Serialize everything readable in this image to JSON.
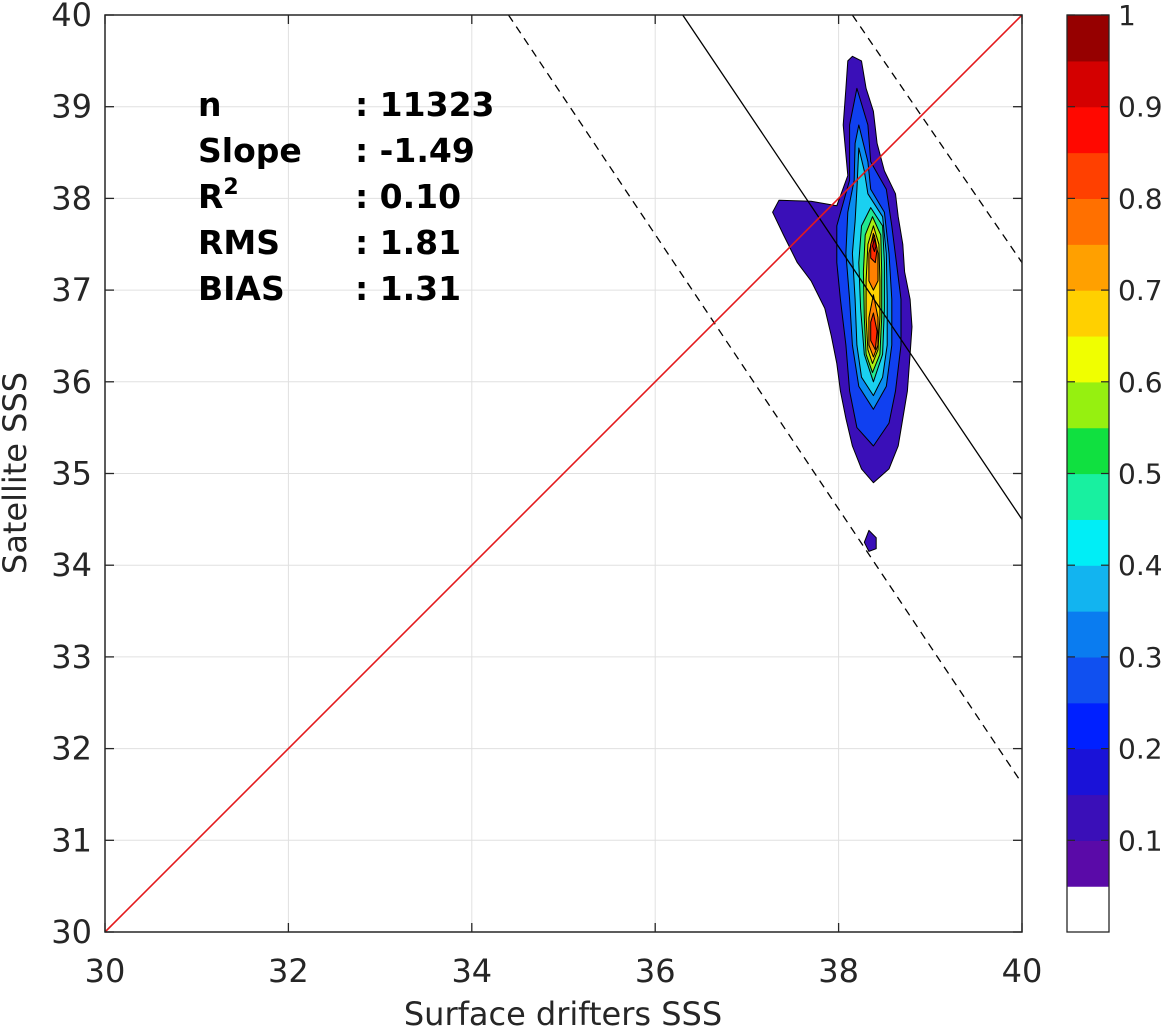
{
  "chart_data": {
    "type": "contour",
    "xlabel": "Surface drifters SSS",
    "ylabel": "Satellite SSS",
    "xlim": [
      30,
      40
    ],
    "ylim": [
      30,
      40
    ],
    "xticks": [
      30,
      32,
      34,
      36,
      38,
      40
    ],
    "yticks": [
      30,
      31,
      32,
      33,
      34,
      35,
      36,
      37,
      38,
      39,
      40
    ],
    "grid": true,
    "stats": [
      {
        "label": "n",
        "value": ": 11323"
      },
      {
        "label": "Slope",
        "value": ": -1.49"
      },
      {
        "label": "R",
        "sup": "2",
        "value": ": 0.10"
      },
      {
        "label": "RMS",
        "value": ": 1.81"
      },
      {
        "label": "BIAS",
        "value": ": 1.31"
      }
    ],
    "one_to_one_line": {
      "x": [
        30,
        40
      ],
      "y": [
        30,
        40
      ],
      "color": "#e41a1c"
    },
    "regression_line": {
      "x": [
        36.3,
        40
      ],
      "y": [
        40,
        34.5
      ]
    },
    "confidence_lines": [
      {
        "x": [
          34.4,
          40
        ],
        "y": [
          40,
          31.62
        ]
      },
      {
        "x": [
          38.15,
          40
        ],
        "y": [
          40,
          37.3
        ]
      }
    ],
    "density_contours": [
      {
        "level": 0.05,
        "color": "#3a0fb8",
        "points": [
          [
            38.15,
            39.55
          ],
          [
            38.25,
            39.5
          ],
          [
            38.3,
            39.2
          ],
          [
            38.38,
            38.95
          ],
          [
            38.42,
            38.6
          ],
          [
            38.5,
            38.3
          ],
          [
            38.62,
            38.05
          ],
          [
            38.65,
            37.8
          ],
          [
            38.7,
            37.5
          ],
          [
            38.72,
            37.2
          ],
          [
            38.78,
            36.9
          ],
          [
            38.8,
            36.6
          ],
          [
            38.78,
            36.3
          ],
          [
            38.75,
            35.9
          ],
          [
            38.7,
            35.6
          ],
          [
            38.65,
            35.3
          ],
          [
            38.55,
            35.05
          ],
          [
            38.38,
            34.9
          ],
          [
            38.25,
            35.05
          ],
          [
            38.15,
            35.3
          ],
          [
            38.08,
            35.6
          ],
          [
            38.02,
            35.9
          ],
          [
            37.98,
            36.2
          ],
          [
            37.92,
            36.5
          ],
          [
            37.85,
            36.8
          ],
          [
            37.7,
            37.1
          ],
          [
            37.55,
            37.3
          ],
          [
            37.4,
            37.6
          ],
          [
            37.28,
            37.85
          ],
          [
            37.35,
            37.98
          ],
          [
            37.7,
            37.97
          ],
          [
            37.98,
            37.92
          ],
          [
            38.1,
            38.25
          ],
          [
            38.05,
            38.8
          ],
          [
            38.08,
            39.2
          ],
          [
            38.1,
            39.5
          ]
        ]
      },
      {
        "level": 0.15,
        "color": "#1040f0",
        "points": [
          [
            38.2,
            39.2
          ],
          [
            38.32,
            38.8
          ],
          [
            38.35,
            38.4
          ],
          [
            38.52,
            38.1
          ],
          [
            38.58,
            37.7
          ],
          [
            38.63,
            37.3
          ],
          [
            38.68,
            36.9
          ],
          [
            38.68,
            36.4
          ],
          [
            38.62,
            35.9
          ],
          [
            38.55,
            35.55
          ],
          [
            38.38,
            35.3
          ],
          [
            38.2,
            35.5
          ],
          [
            38.12,
            35.9
          ],
          [
            38.08,
            36.4
          ],
          [
            38.02,
            36.9
          ],
          [
            37.98,
            37.3
          ],
          [
            37.98,
            37.7
          ],
          [
            38.12,
            38.2
          ],
          [
            38.12,
            38.8
          ]
        ]
      },
      {
        "level": 0.25,
        "color": "#0a8cf0",
        "points": [
          [
            38.22,
            38.8
          ],
          [
            38.32,
            38.4
          ],
          [
            38.35,
            38.1
          ],
          [
            38.5,
            37.85
          ],
          [
            38.55,
            37.4
          ],
          [
            38.58,
            36.9
          ],
          [
            38.58,
            36.4
          ],
          [
            38.52,
            35.95
          ],
          [
            38.38,
            35.7
          ],
          [
            38.22,
            35.95
          ],
          [
            38.15,
            36.4
          ],
          [
            38.12,
            36.9
          ],
          [
            38.08,
            37.4
          ],
          [
            38.1,
            37.85
          ],
          [
            38.17,
            38.2
          ],
          [
            38.18,
            38.6
          ]
        ]
      },
      {
        "level": 0.35,
        "color": "#1ad0f0",
        "points": [
          [
            38.22,
            38.55
          ],
          [
            38.28,
            38.3
          ],
          [
            38.32,
            38.05
          ],
          [
            38.48,
            37.8
          ],
          [
            38.52,
            37.4
          ],
          [
            38.53,
            36.9
          ],
          [
            38.53,
            36.4
          ],
          [
            38.48,
            36.05
          ],
          [
            38.38,
            35.85
          ],
          [
            38.25,
            36.05
          ],
          [
            38.2,
            36.4
          ],
          [
            38.18,
            36.9
          ],
          [
            38.15,
            37.4
          ],
          [
            38.18,
            37.75
          ],
          [
            38.2,
            38.1
          ]
        ]
      },
      {
        "level": 0.45,
        "color": "#22e890",
        "points": [
          [
            38.35,
            37.9
          ],
          [
            38.48,
            37.7
          ],
          [
            38.5,
            37.3
          ],
          [
            38.5,
            36.8
          ],
          [
            38.48,
            36.3
          ],
          [
            38.38,
            36.0
          ],
          [
            38.28,
            36.3
          ],
          [
            38.24,
            36.8
          ],
          [
            38.22,
            37.3
          ],
          [
            38.25,
            37.7
          ]
        ]
      },
      {
        "level": 0.55,
        "color": "#a8f010",
        "points": [
          [
            38.37,
            37.8
          ],
          [
            38.46,
            37.6
          ],
          [
            38.47,
            37.2
          ],
          [
            38.47,
            36.7
          ],
          [
            38.45,
            36.3
          ],
          [
            38.37,
            36.1
          ],
          [
            38.3,
            36.3
          ],
          [
            38.28,
            36.7
          ],
          [
            38.27,
            37.2
          ],
          [
            38.29,
            37.6
          ]
        ]
      },
      {
        "level": 0.65,
        "color": "#ffd200",
        "points": [
          [
            38.38,
            37.7
          ],
          [
            38.44,
            37.5
          ],
          [
            38.45,
            37.1
          ],
          [
            38.45,
            36.7
          ],
          [
            38.43,
            36.35
          ],
          [
            38.37,
            36.2
          ],
          [
            38.32,
            36.35
          ],
          [
            38.3,
            36.7
          ],
          [
            38.3,
            37.1
          ],
          [
            38.32,
            37.5
          ]
        ]
      },
      {
        "level": 0.75,
        "color": "#ff8000",
        "points": [
          [
            38.38,
            37.62
          ],
          [
            38.43,
            37.4
          ],
          [
            38.43,
            37.1
          ],
          [
            38.38,
            37.0
          ],
          [
            38.33,
            37.1
          ],
          [
            38.33,
            37.4
          ]
        ]
      },
      {
        "level": 0.75,
        "color": "#ff8000",
        "points": [
          [
            38.38,
            36.95
          ],
          [
            38.43,
            36.7
          ],
          [
            38.43,
            36.4
          ],
          [
            38.38,
            36.27
          ],
          [
            38.33,
            36.4
          ],
          [
            38.33,
            36.7
          ]
        ]
      },
      {
        "level": 0.85,
        "color": "#ff2a00",
        "points": [
          [
            38.39,
            37.6
          ],
          [
            38.42,
            37.45
          ],
          [
            38.4,
            37.3
          ],
          [
            38.35,
            37.35
          ],
          [
            38.35,
            37.5
          ]
        ]
      },
      {
        "level": 0.85,
        "color": "#ff2a00",
        "points": [
          [
            38.38,
            36.75
          ],
          [
            38.42,
            36.55
          ],
          [
            38.4,
            36.35
          ],
          [
            38.35,
            36.45
          ],
          [
            38.35,
            36.65
          ]
        ]
      },
      {
        "level": 0.95,
        "color": "#c80000",
        "points": [
          [
            38.39,
            37.56
          ],
          [
            38.41,
            37.48
          ],
          [
            38.39,
            37.42
          ],
          [
            38.37,
            37.48
          ]
        ]
      },
      {
        "level": 0.05,
        "color": "#3a0fb8",
        "points": [
          [
            38.33,
            34.38
          ],
          [
            38.41,
            34.3
          ],
          [
            38.41,
            34.18
          ],
          [
            38.33,
            34.15
          ],
          [
            38.28,
            34.25
          ]
        ]
      }
    ],
    "colorbar": {
      "ticks": [
        0.1,
        0.2,
        0.3,
        0.4,
        0.5,
        0.6,
        0.7,
        0.8,
        0.9,
        1
      ],
      "tick_labels": [
        "0.1",
        "0.2",
        "0.3",
        "0.4",
        "0.5",
        "0.6",
        "0.7",
        "0.8",
        "0.9",
        "1"
      ],
      "colors": [
        "#ffffff",
        "#5a0aa8",
        "#3a0fb8",
        "#1a12d8",
        "#0020ff",
        "#1050f0",
        "#0a7cf0",
        "#12b4f0",
        "#00eef6",
        "#18f0a0",
        "#10e040",
        "#96f010",
        "#f0ff00",
        "#ffd000",
        "#ffa000",
        "#ff7000",
        "#ff4000",
        "#ff0800",
        "#d40000",
        "#960000"
      ]
    }
  }
}
